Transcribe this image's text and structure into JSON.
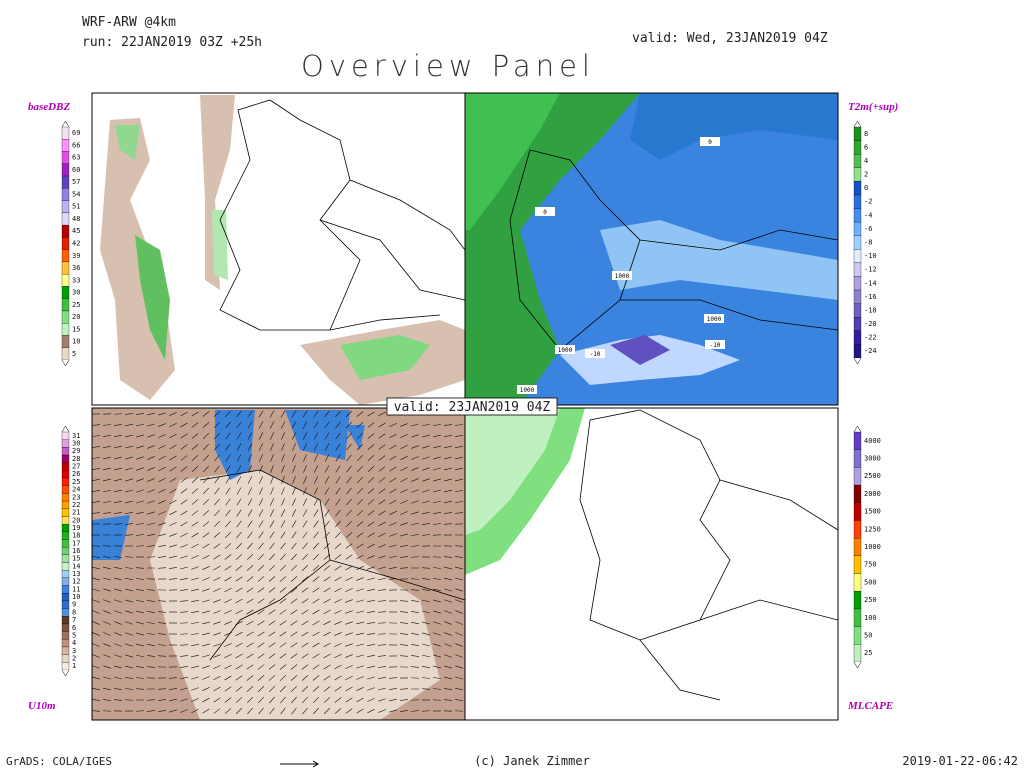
{
  "header": {
    "model": "WRF-ARW @4km",
    "run": "run: 22JAN2019 03Z +25h",
    "valid": "valid: Wed, 23JAN2019 04Z",
    "title": "Overview Panel"
  },
  "center_label": "valid: 23JAN2019 04Z",
  "panels": [
    {
      "name": "baseDBZ",
      "legend": [
        {
          "label": "69",
          "color": "#f4e0f4"
        },
        {
          "label": "66",
          "color": "#ff90ff"
        },
        {
          "label": "63",
          "color": "#e050e0"
        },
        {
          "label": "60",
          "color": "#a020c0"
        },
        {
          "label": "57",
          "color": "#6040c0"
        },
        {
          "label": "54",
          "color": "#9080e0"
        },
        {
          "label": "51",
          "color": "#c0b0f0"
        },
        {
          "label": "48",
          "color": "#e0d8f8"
        },
        {
          "label": "45",
          "color": "#b00000"
        },
        {
          "label": "42",
          "color": "#e02000"
        },
        {
          "label": "39",
          "color": "#ff6000"
        },
        {
          "label": "36",
          "color": "#ffc040"
        },
        {
          "label": "33",
          "color": "#ffff90"
        },
        {
          "label": "30",
          "color": "#00a000"
        },
        {
          "label": "25",
          "color": "#40c040"
        },
        {
          "label": "20",
          "color": "#80e080"
        },
        {
          "label": "15",
          "color": "#c0f0c0"
        },
        {
          "label": "10",
          "color": "#a08070"
        },
        {
          "label": "5",
          "color": "#e8d8c8"
        }
      ]
    },
    {
      "name": "T2m(+sup)",
      "legend": [
        {
          "label": "8",
          "color": "#209020"
        },
        {
          "label": "6",
          "color": "#30a830"
        },
        {
          "label": "4",
          "color": "#50c050"
        },
        {
          "label": "2",
          "color": "#90e090"
        },
        {
          "label": "0",
          "color": "#1850c8"
        },
        {
          "label": "-2",
          "color": "#2870e0"
        },
        {
          "label": "-4",
          "color": "#4090f0"
        },
        {
          "label": "-6",
          "color": "#70b0f8"
        },
        {
          "label": "-8",
          "color": "#a0d0ff"
        },
        {
          "label": "-10",
          "color": "#e0ecff"
        },
        {
          "label": "-12",
          "color": "#d0c8f0"
        },
        {
          "label": "-14",
          "color": "#b0a0e0"
        },
        {
          "label": "-16",
          "color": "#9080d0"
        },
        {
          "label": "-18",
          "color": "#7060c0"
        },
        {
          "label": "-20",
          "color": "#5040b0"
        },
        {
          "label": "-22",
          "color": "#3020a0"
        },
        {
          "label": "-24",
          "color": "#201880"
        }
      ],
      "contour_labels": [
        "1000",
        "1000",
        "1000",
        "1000",
        "-10",
        "-10",
        "0",
        "0"
      ]
    },
    {
      "name": "U10m",
      "legend": [
        {
          "label": "31",
          "color": "#f4d8f4"
        },
        {
          "label": "30",
          "color": "#e0a0e0"
        },
        {
          "label": "29",
          "color": "#c060c0"
        },
        {
          "label": "28",
          "color": "#a00060"
        },
        {
          "label": "27",
          "color": "#c00000"
        },
        {
          "label": "26",
          "color": "#e00000"
        },
        {
          "label": "25",
          "color": "#ff2000"
        },
        {
          "label": "24",
          "color": "#ff5000"
        },
        {
          "label": "23",
          "color": "#ff8000"
        },
        {
          "label": "22",
          "color": "#ffa000"
        },
        {
          "label": "21",
          "color": "#ffc000"
        },
        {
          "label": "20",
          "color": "#ffe060"
        },
        {
          "label": "19",
          "color": "#00a000"
        },
        {
          "label": "18",
          "color": "#20b020"
        },
        {
          "label": "17",
          "color": "#40c040"
        },
        {
          "label": "16",
          "color": "#70d070"
        },
        {
          "label": "15",
          "color": "#a0e0a0"
        },
        {
          "label": "14",
          "color": "#c8f0c8"
        },
        {
          "label": "13",
          "color": "#a0d0f0"
        },
        {
          "label": "12",
          "color": "#80b0e0"
        },
        {
          "label": "11",
          "color": "#4080e0"
        },
        {
          "label": "10",
          "color": "#2060c0"
        },
        {
          "label": "9",
          "color": "#3070d0"
        },
        {
          "label": "8",
          "color": "#5090e0"
        },
        {
          "label": "7",
          "color": "#5a3a28"
        },
        {
          "label": "6",
          "color": "#805040"
        },
        {
          "label": "5",
          "color": "#a07060"
        },
        {
          "label": "4",
          "color": "#c09080"
        },
        {
          "label": "3",
          "color": "#d4b4a4"
        },
        {
          "label": "2",
          "color": "#e6d6c6"
        },
        {
          "label": "1",
          "color": "#f4ece4"
        }
      ]
    },
    {
      "name": "MLCAPE",
      "legend": [
        {
          "label": "4000",
          "color": "#6040c0"
        },
        {
          "label": "3000",
          "color": "#8070d0"
        },
        {
          "label": "2500",
          "color": "#b0a0e0"
        },
        {
          "label": "2000",
          "color": "#800000"
        },
        {
          "label": "1500",
          "color": "#c00000"
        },
        {
          "label": "1250",
          "color": "#ff4000"
        },
        {
          "label": "1000",
          "color": "#ff8000"
        },
        {
          "label": "750",
          "color": "#ffc000"
        },
        {
          "label": "500",
          "color": "#ffff80"
        },
        {
          "label": "250",
          "color": "#00a000"
        },
        {
          "label": "100",
          "color": "#40c040"
        },
        {
          "label": "50",
          "color": "#80e080"
        },
        {
          "label": "25",
          "color": "#c0f0c0"
        }
      ]
    }
  ],
  "footer": {
    "left": "GrADS: COLA/IGES",
    "center": "(c) Janek Zimmer",
    "right": "2019-01-22-06:42"
  }
}
